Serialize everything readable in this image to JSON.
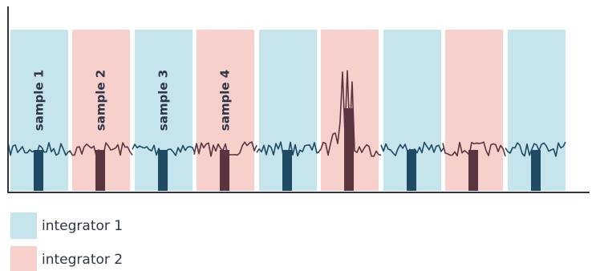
{
  "samples": [
    "sample 1",
    "sample 2",
    "sample 3",
    "sample 4"
  ],
  "legend": [
    "integrator 1",
    "integrator 2"
  ]
}
